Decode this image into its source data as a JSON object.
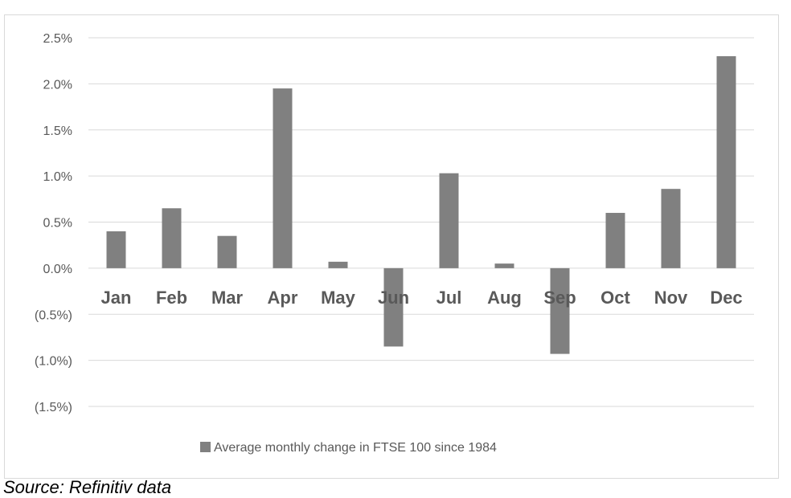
{
  "chart_data": {
    "type": "bar",
    "categories": [
      "Jan",
      "Feb",
      "Mar",
      "Apr",
      "May",
      "Jun",
      "Jul",
      "Aug",
      "Sep",
      "Oct",
      "Nov",
      "Dec"
    ],
    "series": [
      {
        "name": "Average monthly change in FTSE 100 since 1984",
        "values": [
          0.4,
          0.65,
          0.35,
          1.95,
          0.07,
          -0.85,
          1.03,
          0.05,
          -0.93,
          0.6,
          0.86,
          2.3
        ]
      }
    ],
    "ylim": [
      -1.5,
      2.5
    ],
    "yticks": [
      2.5,
      2.0,
      1.5,
      1.0,
      0.5,
      0.0,
      -0.5,
      -1.0,
      -1.5
    ],
    "ytick_labels": [
      "2.5%",
      "2.0%",
      "1.5%",
      "1.0%",
      "0.5%",
      "0.0%",
      "(0.5%)",
      "(1.0%)",
      "(1.5%)"
    ],
    "grid": true,
    "legend_position": "bottom",
    "bar_color": "#808080"
  },
  "source_note": "Source: Refinitiv data"
}
